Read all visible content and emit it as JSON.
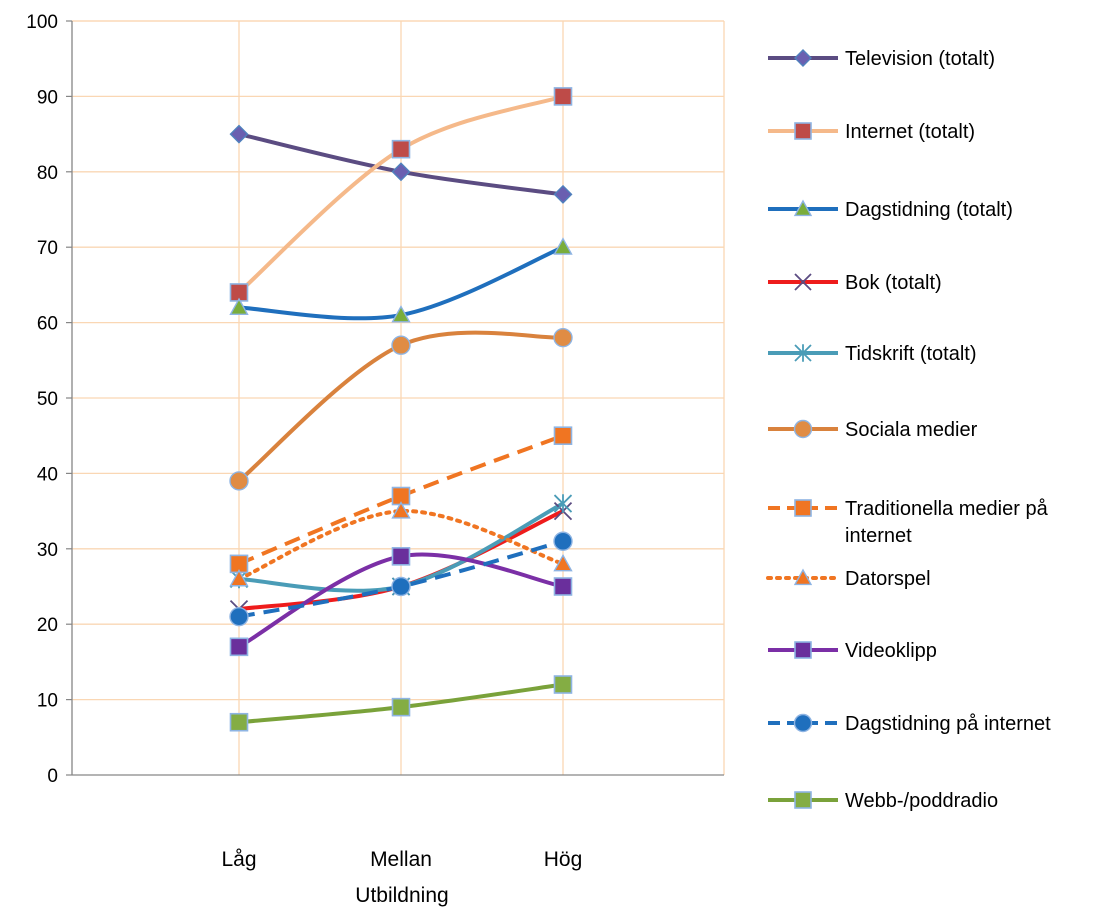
{
  "chart_data": {
    "type": "line",
    "xlabel": "Utbildning",
    "categories": [
      "Låg",
      "Mellan",
      "Hög"
    ],
    "ylim": [
      0,
      100
    ],
    "yticks": [
      0,
      10,
      20,
      30,
      40,
      50,
      60,
      70,
      80,
      90,
      100
    ],
    "ytick_labels": [
      "0",
      "10",
      "20",
      "30",
      "40",
      "50",
      "60",
      "70",
      "80",
      "90",
      "100"
    ],
    "grid": true,
    "grid_color": "#fad7b4",
    "legend_position": "right",
    "series": [
      {
        "name": "Television (totalt)",
        "values": [
          85,
          80,
          77
        ],
        "color": "#5b4c82",
        "marker": "diamond",
        "marker_fill": "#6a5fb0",
        "dash": "solid"
      },
      {
        "name": "Internet (totalt)",
        "values": [
          64,
          83,
          90
        ],
        "color": "#f5b98a",
        "marker": "square",
        "marker_fill": "#be4b48",
        "dash": "solid"
      },
      {
        "name": "Dagstidning (totalt)",
        "values": [
          62,
          61,
          70
        ],
        "color": "#1f6fbd",
        "marker": "triangle",
        "marker_fill": "#7aad3b",
        "dash": "solid"
      },
      {
        "name": "Bok (totalt)",
        "values": [
          22,
          25,
          35
        ],
        "color": "#ee1c1c",
        "marker": "x",
        "marker_fill": "#5b4c82",
        "dash": "solid"
      },
      {
        "name": "Tidskrift (totalt)",
        "values": [
          26,
          25,
          36
        ],
        "color": "#4a9cb7",
        "marker": "star",
        "marker_fill": "#4a9cb7",
        "dash": "solid"
      },
      {
        "name": "Sociala medier",
        "values": [
          39,
          57,
          58
        ],
        "color": "#d9823d",
        "marker": "circle",
        "marker_fill": "#e08c44",
        "dash": "solid"
      },
      {
        "name": "Traditionella medier på internet",
        "values": [
          28,
          37,
          45
        ],
        "color": "#f07522",
        "marker": "square",
        "marker_fill": "#f07522",
        "dash": "dash"
      },
      {
        "name": "Datorspel",
        "values": [
          26,
          35,
          28
        ],
        "color": "#f07522",
        "marker": "triangle",
        "marker_fill": "#f07522",
        "dash": "dot"
      },
      {
        "name": "Videoklipp",
        "values": [
          17,
          29,
          25
        ],
        "color": "#7b2fa6",
        "marker": "square",
        "marker_fill": "#6a2f9c",
        "dash": "solid"
      },
      {
        "name": "Dagstidning på internet",
        "values": [
          21,
          25,
          31
        ],
        "color": "#1f6fbd",
        "marker": "circle",
        "marker_fill": "#1f6fbd",
        "dash": "dash"
      },
      {
        "name": "Webb-/poddradio",
        "values": [
          7,
          9,
          12
        ],
        "color": "#7aa23a",
        "marker": "square",
        "marker_fill": "#84ad44",
        "dash": "solid"
      }
    ]
  }
}
